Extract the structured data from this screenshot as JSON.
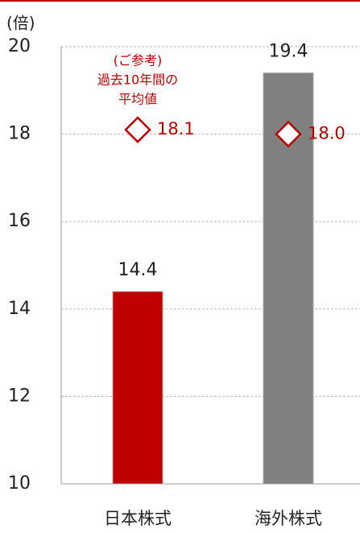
{
  "chart_data": {
    "type": "bar",
    "y_axis_label": "(倍)",
    "categories": [
      "日本株式",
      "海外株式"
    ],
    "values": [
      14.4,
      19.4
    ],
    "colors": [
      "#c00000",
      "#808080"
    ],
    "averages": {
      "values": [
        18.1,
        18.0
      ],
      "value_labels": [
        "18.1",
        "18.0"
      ],
      "color": "#c00000"
    },
    "annotation": [
      "(ご参考)",
      "過去10年間の",
      "平均値"
    ],
    "ylim": [
      10,
      20
    ],
    "yticks": [
      10,
      12,
      14,
      16,
      18,
      20
    ],
    "grid": true
  }
}
